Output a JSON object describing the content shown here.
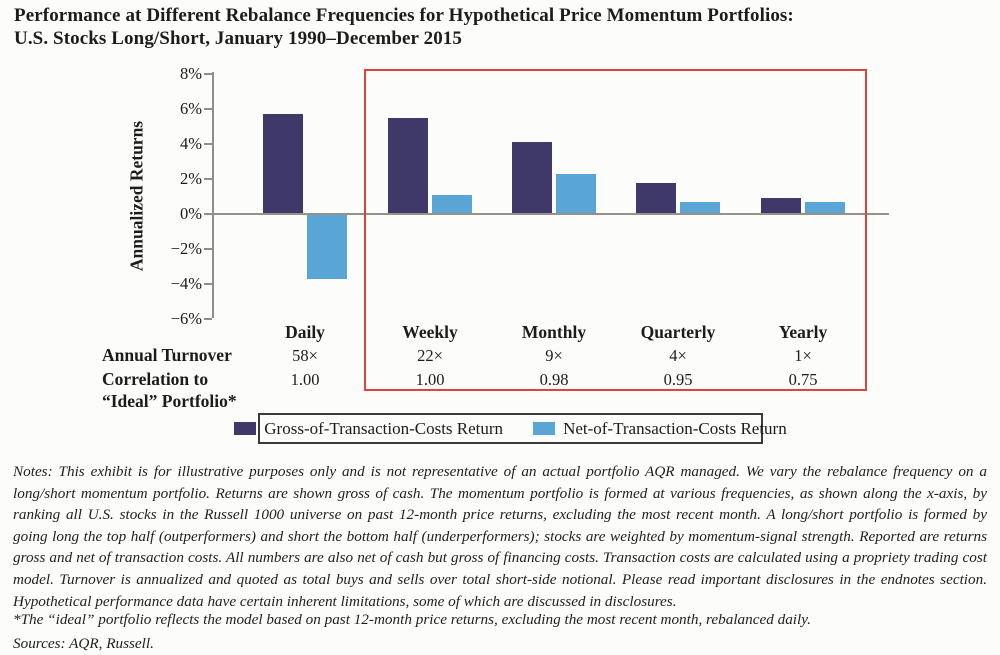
{
  "title": {
    "line1": "Performance at Different Rebalance Frequencies for Hypothetical Price Momentum Portfolios:",
    "line2": "U.S. Stocks Long/Short, January 1990–December 2015"
  },
  "chart_data": {
    "type": "bar",
    "title": "Performance at Different Rebalance Frequencies for Hypothetical Price Momentum Portfolios: U.S. Stocks Long/Short, January 1990–December 2015",
    "xlabel": "",
    "ylabel": "Annualized Returns",
    "ylim": [
      -6,
      8
    ],
    "yticks": [
      8,
      6,
      4,
      2,
      0,
      -2,
      -4,
      -6
    ],
    "ytick_labels": [
      "8%",
      "6%",
      "4%",
      "2%",
      "0%",
      "−2%",
      "−4%",
      "−6%"
    ],
    "grid": false,
    "legend_position": "bottom",
    "categories": [
      "Daily",
      "Weekly",
      "Monthly",
      "Quarterly",
      "Yearly"
    ],
    "series": [
      {
        "name": "Gross-of-Transaction-Costs Return",
        "color": "#3e3969",
        "values": [
          5.7,
          5.5,
          4.1,
          1.8,
          0.9
        ]
      },
      {
        "name": "Net-of-Transaction-Costs Return",
        "color": "#58a5d6",
        "values": [
          -3.7,
          1.1,
          2.3,
          0.7,
          0.7
        ]
      }
    ],
    "highlight_box": {
      "color": "#e0423c",
      "covers_categories": [
        "Weekly",
        "Monthly",
        "Quarterly",
        "Yearly"
      ]
    }
  },
  "table": {
    "rows": [
      {
        "label_lines": [
          "Annual Turnover"
        ],
        "values": [
          "58×",
          "22×",
          "9×",
          "4×",
          "1×"
        ]
      },
      {
        "label_lines": [
          "Correlation to",
          "“Ideal” Portfolio*"
        ],
        "values": [
          "1.00",
          "1.00",
          "0.98",
          "0.95",
          "0.75"
        ]
      }
    ]
  },
  "legend": {
    "items": [
      {
        "label": "Gross-of-Transaction-Costs Return",
        "color": "#3e3969"
      },
      {
        "label": "Net-of-Transaction-Costs Return",
        "color": "#58a5d6"
      }
    ]
  },
  "notes": {
    "lines": [
      "Notes: This exhibit is for illustrative purposes only and is not representative of an actual portfolio AQR managed. We vary the rebalance frequency on a",
      "long/short momentum portfolio. Returns are shown gross of cash. The momentum portfolio is formed at various frequencies, as shown along the x-axis, by",
      "ranking all U.S. stocks in the Russell 1000 universe on past 12-month price returns, excluding the most recent month. A long/short portfolio is formed by",
      "going long the top half (outperformers) and short the bottom half (underperformers); stocks are weighted by momentum-signal strength. Reported are returns",
      "gross and net of transaction costs. All numbers are also net of cash but gross of financing costs. Transaction costs are calculated using a propriety trading cost",
      "model. Turnover is annualized and quoted as total buys and sells over total short-side notional. Please read important disclosures in the endnotes section.",
      "Hypothetical performance data have certain inherent limitations, some of which are discussed in disclosures."
    ]
  },
  "footnote": "*The “ideal” portfolio reflects the model based on past 12-month price returns, excluding the most recent month, rebalanced daily.",
  "sources": "Sources: AQR, Russell.",
  "colors": {
    "gross_bar": "#3e3969",
    "net_bar": "#58a5d6",
    "highlight_box": "#e0423c",
    "axis": "#8e8e8e"
  }
}
